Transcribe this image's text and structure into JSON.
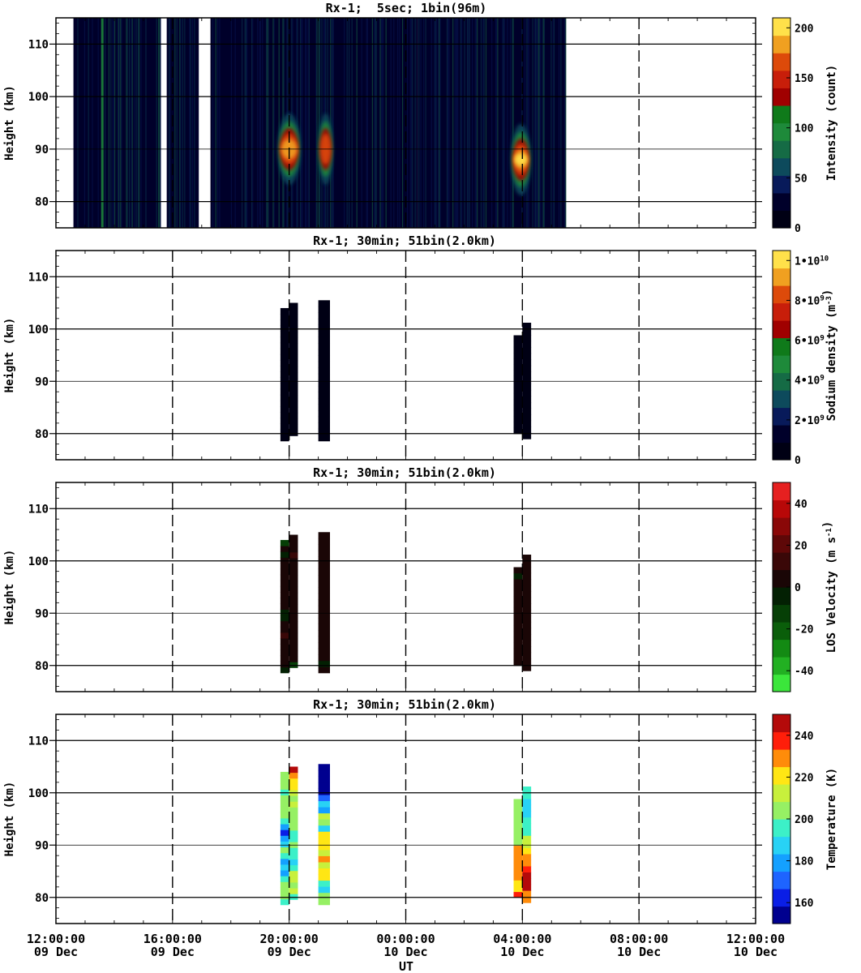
{
  "figure": {
    "xlabel": "UT",
    "x_ticks": [
      {
        "time": "12:00:00",
        "date": "09 Dec"
      },
      {
        "time": "16:00:00",
        "date": "09 Dec"
      },
      {
        "time": "20:00:00",
        "date": "09 Dec"
      },
      {
        "time": "00:00:00",
        "date": "10 Dec"
      },
      {
        "time": "04:00:00",
        "date": "10 Dec"
      },
      {
        "time": "08:00:00",
        "date": "10 Dec"
      },
      {
        "time": "12:00:00",
        "date": "10 Dec"
      }
    ]
  },
  "chart_data": [
    {
      "type": "heatmap",
      "title": "Rx-1;  5sec; 1bin(96m)",
      "ylabel": "Height (km)",
      "xlim_hours_ut": [
        12,
        36
      ],
      "ylim": [
        75,
        115
      ],
      "y_ticks": [
        "80",
        "90",
        "100",
        "110"
      ],
      "colorbar": {
        "label": "Intensity (count)",
        "range": [
          0,
          210
        ],
        "ticks": [
          "0",
          "50",
          "100",
          "150",
          "200"
        ],
        "colors": [
          "#000014",
          "#00002a",
          "#081a5a",
          "#0d4a5c",
          "#156b45",
          "#1e8a3a",
          "#0f7a1a",
          "#a00000",
          "#c81e0a",
          "#dd4a0a",
          "#f0a020",
          "#ffe14a"
        ]
      },
      "data_segments_hours": [
        [
          12.6,
          15.6
        ],
        [
          15.8,
          16.9
        ],
        [
          17.3,
          24.4
        ],
        [
          24.4,
          29.5
        ]
      ],
      "bright_layers": [
        {
          "start_hour": 19.6,
          "end_hour": 20.4,
          "peak_km": 90,
          "intensity": 180
        },
        {
          "start_hour": 21.0,
          "end_hour": 21.5,
          "peak_km": 90,
          "intensity": 150
        },
        {
          "start_hour": 27.6,
          "end_hour": 28.3,
          "peak_km": 88,
          "intensity": 200
        }
      ]
    },
    {
      "type": "heatmap",
      "title": "Rx-1; 30min; 51bin(2.0km)",
      "ylabel": "Height (km)",
      "ylim": [
        75,
        115
      ],
      "y_ticks": [
        "80",
        "90",
        "100",
        "110"
      ],
      "colorbar": {
        "label": "Sodium density (m⁻³)",
        "range": [
          0,
          10500000000.0
        ],
        "ticks": [
          "0",
          "2•10⁹",
          "4•10⁹",
          "6•10⁹",
          "8•10⁹",
          "1•10¹⁰"
        ],
        "colors": [
          "#000014",
          "#00002a",
          "#081a5a",
          "#0d4a5c",
          "#156b45",
          "#1e8a3a",
          "#0f7a1a",
          "#a00000",
          "#c81e0a",
          "#dd4a0a",
          "#f0a020",
          "#ffe14a"
        ]
      },
      "columns": [
        {
          "start_hour": 19.7,
          "end_hour": 20.0,
          "bottom_km": 78.6,
          "top_km": 104.0,
          "values": [
            0.1,
            0.3,
            0.6,
            1.2,
            2.0,
            3.0,
            4.5,
            6.5,
            8.8,
            9.6,
            8.4,
            6.2,
            3.8,
            1.8,
            0.6,
            0.2,
            0.1,
            0.1,
            0.1,
            0.1,
            0.1,
            0.1,
            0.1
          ]
        },
        {
          "start_hour": 20.0,
          "end_hour": 20.3,
          "bottom_km": 79.6,
          "top_km": 105.0,
          "values": [
            0.2,
            0.5,
            1.1,
            2.0,
            3.2,
            4.6,
            5.6,
            6.4,
            6.0,
            4.6,
            3.1,
            2.0,
            1.2,
            0.6,
            0.3,
            0.2,
            0.1,
            0.1,
            0.1,
            0.1,
            0.1,
            0.1,
            0.1
          ]
        },
        {
          "start_hour": 21.0,
          "end_hour": 21.4,
          "bottom_km": 78.6,
          "top_km": 105.5,
          "values": [
            0.1,
            0.2,
            2.0,
            4.4,
            5.4,
            6.6,
            7.6,
            7.0,
            6.6,
            6.0,
            5.0,
            3.4,
            1.8,
            0.8,
            0.3,
            0.1,
            0.1,
            0.1,
            0.1,
            0.1,
            0.1,
            0.1,
            0.1
          ]
        },
        {
          "start_hour": 27.7,
          "end_hour": 28.0,
          "bottom_km": 80.0,
          "top_km": 98.8,
          "values": [
            0.4,
            1.0,
            2.0,
            3.0,
            4.4,
            6.2,
            7.8,
            8.6,
            7.4,
            5.0,
            3.0,
            1.2,
            0.6,
            0.2,
            0.1,
            0.1,
            0.1
          ]
        },
        {
          "start_hour": 28.0,
          "end_hour": 28.3,
          "bottom_km": 79.0,
          "top_km": 101.2,
          "values": [
            0.2,
            0.6,
            1.6,
            3.0,
            4.6,
            7.0,
            8.2,
            7.8,
            6.0,
            4.0,
            2.6,
            1.2,
            0.5,
            0.2,
            0.1,
            0.1,
            0.1,
            0.1,
            0.1
          ]
        }
      ]
    },
    {
      "type": "heatmap",
      "title": "Rx-1; 30min; 51bin(2.0km)",
      "ylabel": "Height (km)",
      "ylim": [
        75,
        115
      ],
      "y_ticks": [
        "80",
        "90",
        "100",
        "110"
      ],
      "colorbar": {
        "label": "LOS Velocity (m s⁻¹)",
        "range": [
          -50,
          50
        ],
        "ticks": [
          "-40",
          "-20",
          "0",
          "20",
          "40"
        ],
        "colors": [
          "#3be63b",
          "#22b022",
          "#138a13",
          "#0a5e0a",
          "#063f06",
          "#032003",
          "#1a0606",
          "#3a0808",
          "#5e0808",
          "#8a0808",
          "#b80808",
          "#e62020"
        ]
      },
      "columns": [
        {
          "start_hour": 19.7,
          "end_hour": 20.0,
          "bottom_km": 78.6,
          "top_km": 104.0,
          "values": [
            -8,
            2,
            3,
            3,
            2,
            3,
            9,
            4,
            2,
            -8,
            -4,
            2,
            3,
            2,
            2,
            2,
            2,
            2,
            3,
            3,
            -2,
            2,
            -10
          ]
        },
        {
          "start_hour": 20.0,
          "end_hour": 20.3,
          "bottom_km": 79.6,
          "top_km": 105.0,
          "values": [
            -10,
            2,
            3,
            2,
            3,
            2,
            3,
            3,
            3,
            3,
            2,
            3,
            3,
            3,
            3,
            3,
            3,
            3,
            3,
            12,
            5,
            5,
            6
          ]
        },
        {
          "start_hour": 21.0,
          "end_hour": 21.4,
          "bottom_km": 78.6,
          "top_km": 105.5,
          "values": [
            2,
            -4,
            2,
            2,
            2,
            2,
            2,
            2,
            2,
            2,
            2,
            2,
            2,
            2,
            2,
            2,
            2,
            2,
            2,
            2,
            2,
            2,
            2
          ]
        },
        {
          "start_hour": 27.7,
          "end_hour": 28.0,
          "bottom_km": 80.0,
          "top_km": 98.8,
          "values": [
            3,
            3,
            3,
            3,
            3,
            3,
            3,
            3,
            3,
            3,
            3,
            3,
            3,
            3,
            3,
            -2,
            6
          ]
        },
        {
          "start_hour": 28.0,
          "end_hour": 28.3,
          "bottom_km": 79.0,
          "top_km": 101.2,
          "values": [
            3,
            3,
            3,
            3,
            3,
            3,
            3,
            3,
            3,
            3,
            3,
            3,
            3,
            3,
            3,
            3,
            3,
            3,
            4
          ]
        }
      ]
    },
    {
      "type": "heatmap",
      "title": "Rx-1; 30min; 51bin(2.0km)",
      "ylabel": "Height (km)",
      "ylim": [
        75,
        115
      ],
      "y_ticks": [
        "80",
        "90",
        "100",
        "110"
      ],
      "colorbar": {
        "label": "Temperature (K)",
        "range": [
          150,
          250
        ],
        "ticks": [
          "160",
          "180",
          "200",
          "220",
          "240"
        ],
        "colors": [
          "#00008f",
          "#0a1ee6",
          "#1e64ff",
          "#14a0ff",
          "#28d2f5",
          "#3cf0c8",
          "#96f064",
          "#c8f03c",
          "#ffe614",
          "#ff8c0a",
          "#ff1e0a",
          "#b40a0a"
        ]
      },
      "columns": [
        {
          "start_hour": 19.7,
          "end_hour": 20.0,
          "bottom_km": 78.6,
          "top_km": 104.0,
          "values": [
            192,
            205,
            208,
            203,
            198,
            182,
            190,
            182,
            198,
            208,
            190,
            176,
            166,
            180,
            198,
            205,
            208,
            206,
            202,
            199,
            203,
            205,
            200
          ]
        },
        {
          "start_hour": 20.0,
          "end_hour": 20.3,
          "bottom_km": 79.6,
          "top_km": 105.0,
          "values": [
            193,
            215,
            205,
            210,
            213,
            198,
            191,
            197,
            192,
            200,
            198,
            193,
            205,
            208,
            204,
            206,
            210,
            205,
            216,
            222,
            218,
            226,
            245
          ]
        },
        {
          "start_hour": 21.0,
          "end_hour": 21.4,
          "bottom_km": 78.6,
          "top_km": 105.5,
          "values": [
            205,
            201,
            189,
            197,
            222,
            224,
            210,
            229,
            216,
            218,
            220,
            220,
            190,
            200,
            209,
            180,
            190,
            168,
            158,
            155,
            155,
            155,
            155
          ]
        },
        {
          "start_hour": 27.7,
          "end_hour": 28.0,
          "bottom_km": 80.0,
          "top_km": 98.8,
          "values": [
            240,
            220,
            218,
            230,
            226,
            226,
            226,
            226,
            229,
            205,
            204,
            204,
            208,
            208,
            208,
            204,
            208
          ]
        },
        {
          "start_hour": 28.0,
          "end_hour": 28.3,
          "bottom_km": 79.0,
          "top_km": 101.2,
          "values": [
            226,
            232,
            245,
            242,
            242,
            237,
            226,
            225,
            219,
            215,
            212,
            199,
            195,
            193,
            187,
            190,
            191,
            196,
            198
          ]
        }
      ]
    }
  ]
}
